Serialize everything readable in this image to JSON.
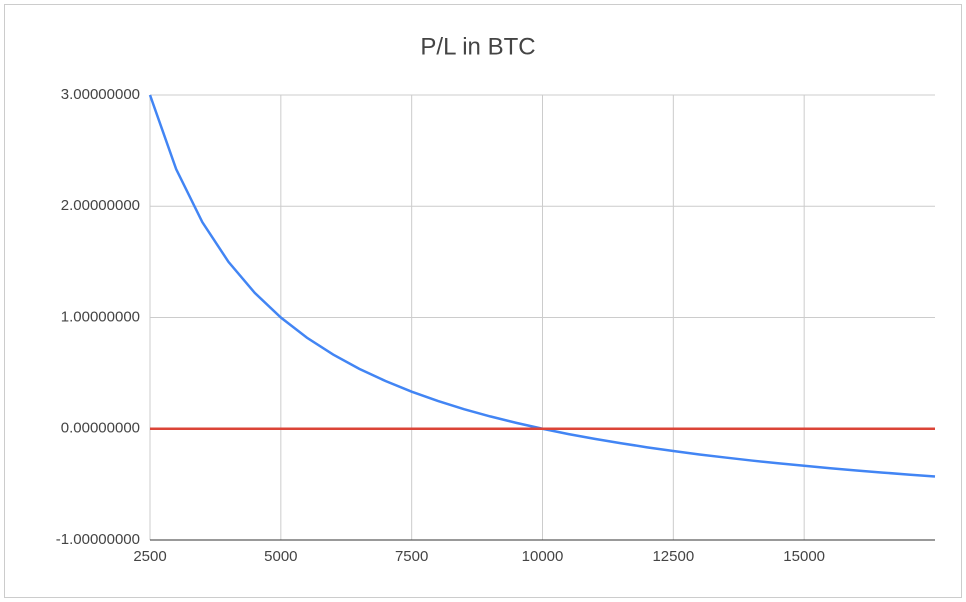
{
  "chart_data": {
    "type": "line",
    "title": "P/L in BTC",
    "x": [
      2500,
      3000,
      3500,
      4000,
      4500,
      5000,
      5500,
      6000,
      6500,
      7000,
      7500,
      8000,
      8500,
      9000,
      9500,
      10000,
      10500,
      11000,
      11500,
      12000,
      12500,
      13000,
      13500,
      14000,
      14500,
      15000,
      15500,
      16000,
      16500,
      17000,
      17500
    ],
    "series": [
      {
        "color": "#4285f4",
        "values": [
          3,
          2.333,
          1.857,
          1.5,
          1.222,
          1,
          0.818,
          0.667,
          0.538,
          0.429,
          0.333,
          0.25,
          0.176,
          0.111,
          0.053,
          0,
          -0.048,
          -0.091,
          -0.13,
          -0.167,
          -0.2,
          -0.231,
          -0.259,
          -0.286,
          -0.31,
          -0.333,
          -0.355,
          -0.375,
          -0.394,
          -0.412,
          -0.429
        ]
      },
      {
        "color": "#db4437",
        "values": [
          0,
          0,
          0,
          0,
          0,
          0,
          0,
          0,
          0,
          0,
          0,
          0,
          0,
          0,
          0,
          0,
          0,
          0,
          0,
          0,
          0,
          0,
          0,
          0,
          0,
          0,
          0,
          0,
          0,
          0,
          0
        ]
      }
    ],
    "xlim": [
      2500,
      17500
    ],
    "xticks": [
      2500,
      5000,
      7500,
      10000,
      12500,
      15000
    ],
    "ylim": [
      -1,
      3
    ],
    "yticks": [
      {
        "value": -1,
        "label": "-1.00000000"
      },
      {
        "value": 0,
        "label": "0.00000000"
      },
      {
        "value": 1,
        "label": "1.00000000"
      },
      {
        "value": 2,
        "label": "2.00000000"
      },
      {
        "value": 3,
        "label": "3.00000000"
      }
    ],
    "grid": true
  }
}
